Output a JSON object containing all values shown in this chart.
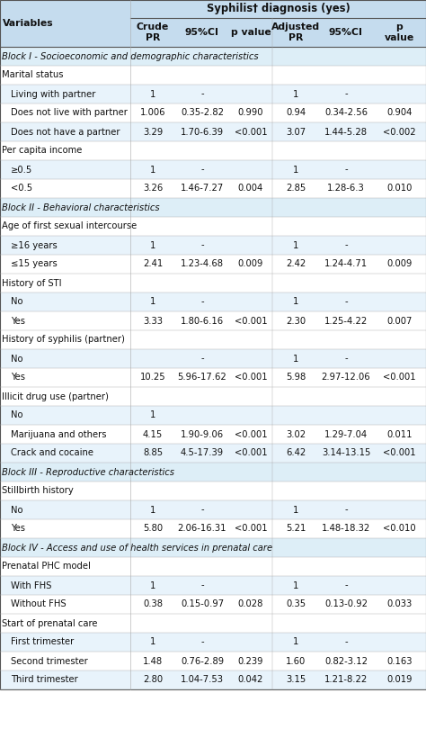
{
  "title": "Syphilis† diagnosis (yes)",
  "col_headers": [
    "Crude\nPR",
    "95%CI",
    "p value",
    "Adjusted\nPR",
    "95%CI",
    "p\nvalue"
  ],
  "var_col_header": "Variables",
  "rows": [
    {
      "type": "block",
      "text": "Block I - Socioeconomic and demographic characteristics"
    },
    {
      "type": "category",
      "text": "Marital status"
    },
    {
      "type": "data",
      "label": "Living with partner",
      "crude_pr": "1",
      "crude_ci": "-",
      "crude_p": "",
      "adj_pr": "1",
      "adj_ci": "-",
      "adj_p": ""
    },
    {
      "type": "data",
      "label": "Does not live with partner",
      "crude_pr": "1.006",
      "crude_ci": "0.35-2.82",
      "crude_p": "0.990",
      "adj_pr": "0.94",
      "adj_ci": "0.34-2.56",
      "adj_p": "0.904"
    },
    {
      "type": "data",
      "label": "Does not have a partner",
      "crude_pr": "3.29",
      "crude_ci": "1.70-6.39",
      "crude_p": "<0.001",
      "adj_pr": "3.07",
      "adj_ci": "1.44-5.28",
      "adj_p": "<0.002"
    },
    {
      "type": "category",
      "text": "Per capita income"
    },
    {
      "type": "data",
      "label": "≥0.5",
      "crude_pr": "1",
      "crude_ci": "-",
      "crude_p": "",
      "adj_pr": "1",
      "adj_ci": "-",
      "adj_p": ""
    },
    {
      "type": "data",
      "label": "<0.5",
      "crude_pr": "3.26",
      "crude_ci": "1.46-7.27",
      "crude_p": "0.004",
      "adj_pr": "2.85",
      "adj_ci": "1.28-6.3",
      "adj_p": "0.010"
    },
    {
      "type": "block",
      "text": "Block II - Behavioral characteristics"
    },
    {
      "type": "category",
      "text": "Age of first sexual intercourse"
    },
    {
      "type": "data",
      "label": "≥16 years",
      "crude_pr": "1",
      "crude_ci": "-",
      "crude_p": "",
      "adj_pr": "1",
      "adj_ci": "-",
      "adj_p": ""
    },
    {
      "type": "data",
      "label": "≤15 years",
      "crude_pr": "2.41",
      "crude_ci": "1.23-4.68",
      "crude_p": "0.009",
      "adj_pr": "2.42",
      "adj_ci": "1.24-4.71",
      "adj_p": "0.009"
    },
    {
      "type": "category",
      "text": "History of STI"
    },
    {
      "type": "data",
      "label": "No",
      "crude_pr": "1",
      "crude_ci": "-",
      "crude_p": "",
      "adj_pr": "1",
      "adj_ci": "-",
      "adj_p": ""
    },
    {
      "type": "data",
      "label": "Yes",
      "crude_pr": "3.33",
      "crude_ci": "1.80-6.16",
      "crude_p": "<0.001",
      "adj_pr": "2.30",
      "adj_ci": "1.25-4.22",
      "adj_p": "0.007"
    },
    {
      "type": "category",
      "text": "History of syphilis (partner)"
    },
    {
      "type": "data",
      "label": "No",
      "crude_pr": "",
      "crude_ci": "-",
      "crude_p": "",
      "adj_pr": "1",
      "adj_ci": "-",
      "adj_p": ""
    },
    {
      "type": "data",
      "label": "Yes",
      "crude_pr": "10.25",
      "crude_ci": "5.96-17.62",
      "crude_p": "<0.001",
      "adj_pr": "5.98",
      "adj_ci": "2.97-12.06",
      "adj_p": "<0.001"
    },
    {
      "type": "category",
      "text": "Illicit drug use (partner)"
    },
    {
      "type": "data",
      "label": "No",
      "crude_pr": "1",
      "crude_ci": "",
      "crude_p": "",
      "adj_pr": "",
      "adj_ci": "",
      "adj_p": ""
    },
    {
      "type": "data",
      "label": "Marijuana and others",
      "crude_pr": "4.15",
      "crude_ci": "1.90-9.06",
      "crude_p": "<0.001",
      "adj_pr": "3.02",
      "adj_ci": "1.29-7.04",
      "adj_p": "0.011"
    },
    {
      "type": "data",
      "label": "Crack and cocaine",
      "crude_pr": "8.85",
      "crude_ci": "4.5-17.39",
      "crude_p": "<0.001",
      "adj_pr": "6.42",
      "adj_ci": "3.14-13.15",
      "adj_p": "<0.001"
    },
    {
      "type": "block",
      "text": "Block III - Reproductive characteristics"
    },
    {
      "type": "category",
      "text": "Stillbirth history"
    },
    {
      "type": "data",
      "label": "No",
      "crude_pr": "1",
      "crude_ci": "-",
      "crude_p": "",
      "adj_pr": "1",
      "adj_ci": "-",
      "adj_p": ""
    },
    {
      "type": "data",
      "label": "Yes",
      "crude_pr": "5.80",
      "crude_ci": "2.06-16.31",
      "crude_p": "<0.001",
      "adj_pr": "5.21",
      "adj_ci": "1.48-18.32",
      "adj_p": "<0.010"
    },
    {
      "type": "block",
      "text": "Block IV - Access and use of health services in prenatal care"
    },
    {
      "type": "category",
      "text": "Prenatal PHC model"
    },
    {
      "type": "data",
      "label": "With FHS",
      "crude_pr": "1",
      "crude_ci": "-",
      "crude_p": "",
      "adj_pr": "1",
      "adj_ci": "-",
      "adj_p": ""
    },
    {
      "type": "data",
      "label": "Without FHS",
      "crude_pr": "0.38",
      "crude_ci": "0.15-0.97",
      "crude_p": "0.028",
      "adj_pr": "0.35",
      "adj_ci": "0.13-0.92",
      "adj_p": "0.033"
    },
    {
      "type": "category",
      "text": "Start of prenatal care"
    },
    {
      "type": "data",
      "label": "First trimester",
      "crude_pr": "1",
      "crude_ci": "-",
      "crude_p": "",
      "adj_pr": "1",
      "adj_ci": "-",
      "adj_p": ""
    },
    {
      "type": "data",
      "label": "Second trimester",
      "crude_pr": "1.48",
      "crude_ci": "0.76-2.89",
      "crude_p": "0.239",
      "adj_pr": "1.60",
      "adj_ci": "0.82-3.12",
      "adj_p": "0.163"
    },
    {
      "type": "data",
      "label": "Third trimester",
      "crude_pr": "2.80",
      "crude_ci": "1.04-7.53",
      "crude_p": "0.042",
      "adj_pr": "3.15",
      "adj_ci": "1.21-8.22",
      "adj_p": "0.019"
    }
  ],
  "header_color": "#c5dcee",
  "block_bg": "#ddeef7",
  "white_bg": "#ffffff",
  "light_bg": "#e8f3fb",
  "text_color": "#111111",
  "font_size": 7.2,
  "header_font_size": 7.8
}
